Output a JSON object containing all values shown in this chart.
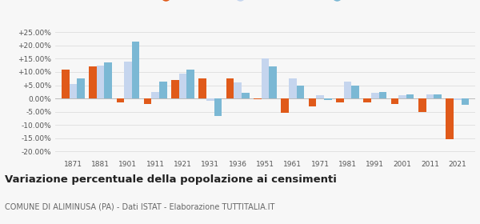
{
  "years": [
    1871,
    1881,
    1901,
    1911,
    1921,
    1931,
    1936,
    1951,
    1961,
    1971,
    1981,
    1991,
    2001,
    2011,
    2021
  ],
  "aliminusa": [
    10.8,
    12.0,
    -1.5,
    -2.0,
    7.0,
    7.5,
    7.5,
    -0.3,
    -5.5,
    -3.0,
    -1.5,
    -1.5,
    -2.0,
    -5.0,
    -15.5
  ],
  "provincia_pa": [
    5.5,
    12.5,
    14.0,
    2.5,
    9.5,
    -0.8,
    6.0,
    15.0,
    7.5,
    1.2,
    6.5,
    2.0,
    1.2,
    1.5,
    -0.5
  ],
  "sicilia": [
    7.5,
    13.5,
    21.5,
    6.5,
    11.0,
    -6.5,
    2.0,
    12.0,
    5.0,
    -0.5,
    5.0,
    2.5,
    1.5,
    1.5,
    -2.5
  ],
  "color_aliminusa": "#E05A1A",
  "color_provincia": "#C5D5EE",
  "color_sicilia": "#7BB8D4",
  "title": "Variazione percentuale della popolazione ai censimenti",
  "subtitle": "COMUNE DI ALIMINUSA (PA) - Dati ISTAT - Elaborazione TUTTITALIA.IT",
  "ylim": [
    -22,
    27
  ],
  "yticks": [
    -20,
    -15,
    -10,
    -5,
    0,
    5,
    10,
    15,
    20,
    25
  ],
  "ytick_labels": [
    "-20.00%",
    "-15.00%",
    "-10.00%",
    "-5.00%",
    "0.00%",
    "+5.00%",
    "+10.00%",
    "+15.00%",
    "+20.00%",
    "+25.00%"
  ],
  "background_color": "#f7f7f7",
  "grid_color": "#dddddd"
}
